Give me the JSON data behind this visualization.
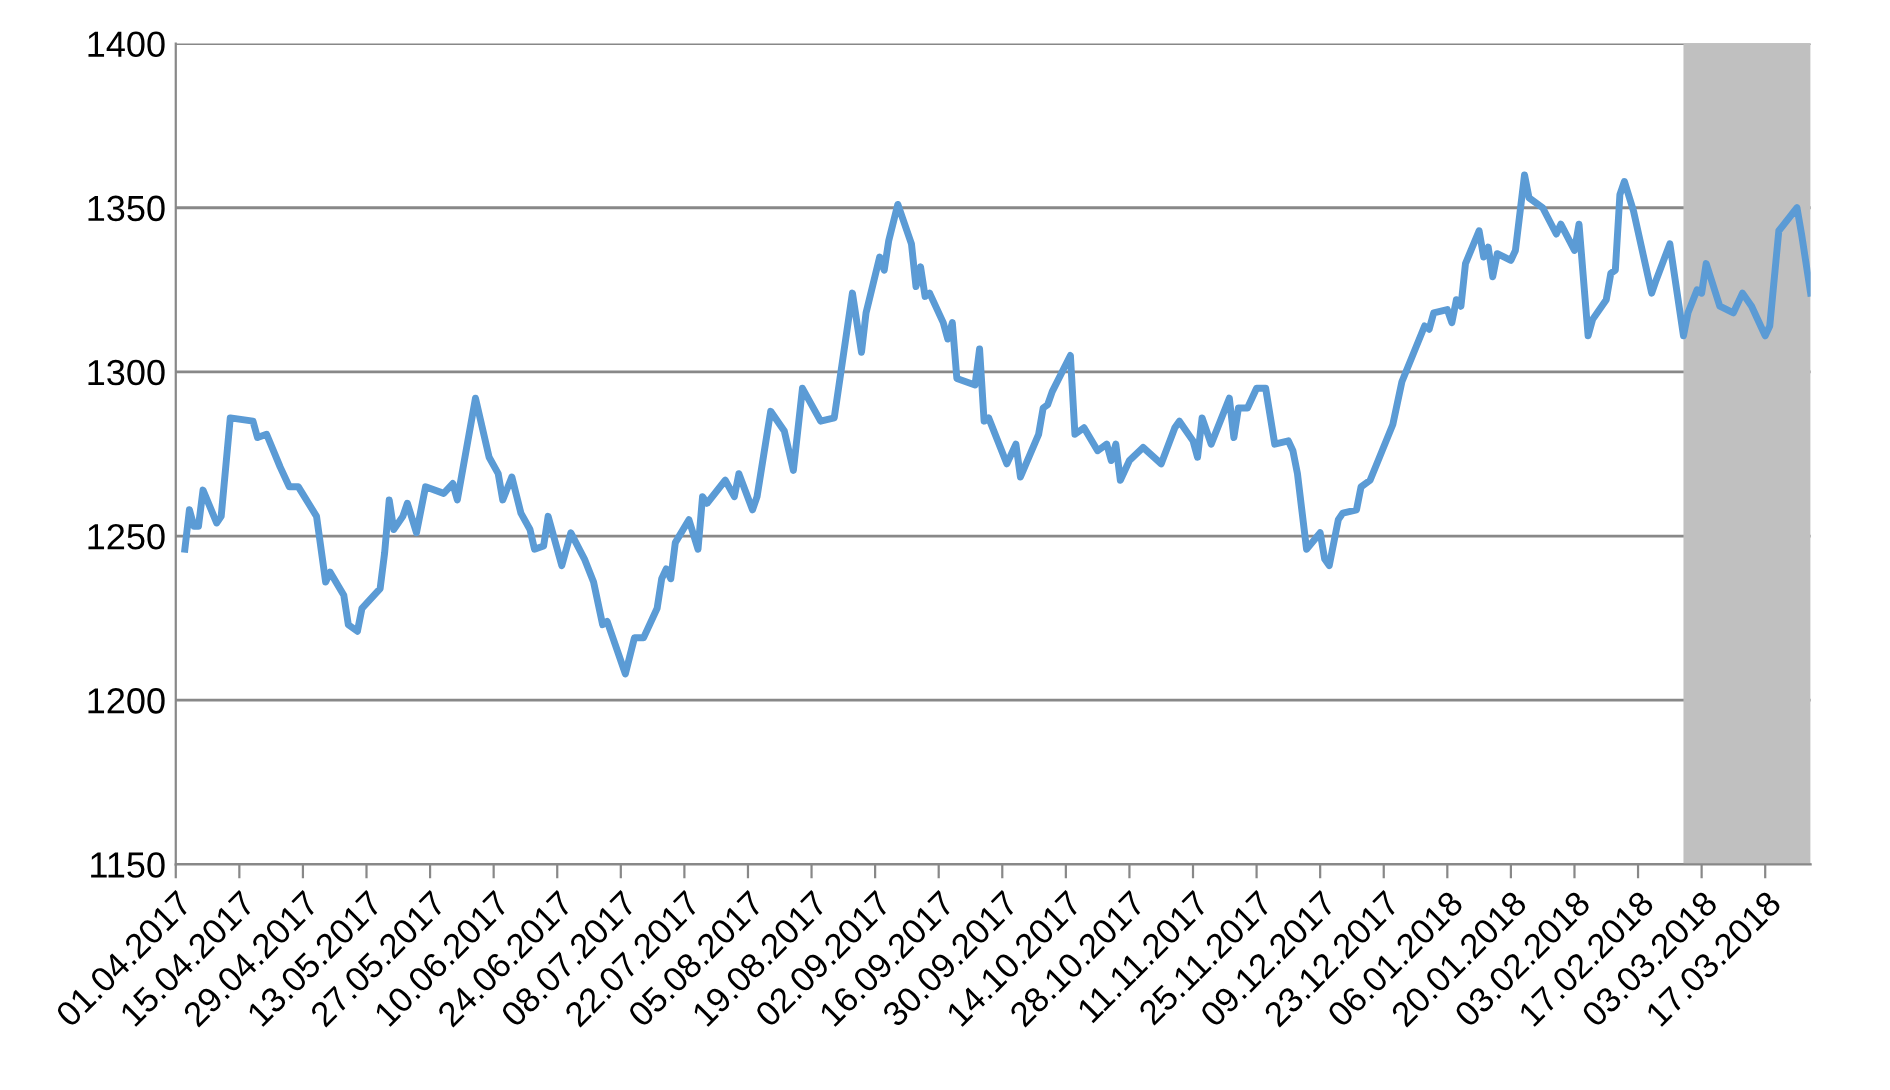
{
  "chart_data": {
    "type": "line",
    "xlim": [
      "2017-04-01",
      "2018-03-27"
    ],
    "ylim": [
      1150,
      1400
    ],
    "yticks": [
      1150,
      1200,
      1250,
      1300,
      1350,
      1400
    ],
    "xticks": [
      {
        "value": "2017-04-01",
        "label": "01.04.2017"
      },
      {
        "value": "2017-04-15",
        "label": "15.04.2017"
      },
      {
        "value": "2017-04-29",
        "label": "29.04.2017"
      },
      {
        "value": "2017-05-13",
        "label": "13.05.2017"
      },
      {
        "value": "2017-05-27",
        "label": "27.05.2017"
      },
      {
        "value": "2017-06-10",
        "label": "10.06.2017"
      },
      {
        "value": "2017-06-24",
        "label": "24.06.2017"
      },
      {
        "value": "2017-07-08",
        "label": "08.07.2017"
      },
      {
        "value": "2017-07-22",
        "label": "22.07.2017"
      },
      {
        "value": "2017-08-05",
        "label": "05.08.2017"
      },
      {
        "value": "2017-08-19",
        "label": "19.08.2017"
      },
      {
        "value": "2017-09-02",
        "label": "02.09.2017"
      },
      {
        "value": "2017-09-16",
        "label": "16.09.2017"
      },
      {
        "value": "2017-09-30",
        "label": "30.09.2017"
      },
      {
        "value": "2017-10-14",
        "label": "14.10.2017"
      },
      {
        "value": "2017-10-28",
        "label": "28.10.2017"
      },
      {
        "value": "2017-11-11",
        "label": "11.11.2017"
      },
      {
        "value": "2017-11-25",
        "label": "25.11.2017"
      },
      {
        "value": "2017-12-09",
        "label": "09.12.2017"
      },
      {
        "value": "2017-12-23",
        "label": "23.12.2017"
      },
      {
        "value": "2018-01-06",
        "label": "06.01.2018"
      },
      {
        "value": "2018-01-20",
        "label": "20.01.2018"
      },
      {
        "value": "2018-02-03",
        "label": "03.02.2018"
      },
      {
        "value": "2018-02-17",
        "label": "17.02.2018"
      },
      {
        "value": "2018-03-03",
        "label": "03.03.2018"
      },
      {
        "value": "2018-03-17",
        "label": "17.03.2018"
      }
    ],
    "grid": "y",
    "marker": "none",
    "line_style": "solid",
    "bands": [
      {
        "axis": "x",
        "from": "2018-02-27",
        "to": "2018-03-27",
        "color": "#c0c0c0"
      }
    ],
    "x": [
      "2017-04-03",
      "2017-04-04",
      "2017-04-05",
      "2017-04-06",
      "2017-04-07",
      "2017-04-10",
      "2017-04-11",
      "2017-04-13",
      "2017-04-18",
      "2017-04-19",
      "2017-04-21",
      "2017-04-24",
      "2017-04-26",
      "2017-04-28",
      "2017-05-02",
      "2017-05-04",
      "2017-05-05",
      "2017-05-08",
      "2017-05-09",
      "2017-05-11",
      "2017-05-12",
      "2017-05-16",
      "2017-05-17",
      "2017-05-18",
      "2017-05-19",
      "2017-05-21",
      "2017-05-22",
      "2017-05-24",
      "2017-05-26",
      "2017-05-30",
      "2017-06-01",
      "2017-06-02",
      "2017-06-06",
      "2017-06-09",
      "2017-06-11",
      "2017-06-12",
      "2017-06-14",
      "2017-06-16",
      "2017-06-18",
      "2017-06-19",
      "2017-06-21",
      "2017-06-22",
      "2017-06-25",
      "2017-06-27",
      "2017-06-30",
      "2017-07-02",
      "2017-07-04",
      "2017-07-05",
      "2017-07-07",
      "2017-07-09",
      "2017-07-11",
      "2017-07-13",
      "2017-07-16",
      "2017-07-17",
      "2017-07-18",
      "2017-07-19",
      "2017-07-20",
      "2017-07-23",
      "2017-07-25",
      "2017-07-26",
      "2017-07-27",
      "2017-07-31",
      "2017-08-02",
      "2017-08-03",
      "2017-08-06",
      "2017-08-07",
      "2017-08-10",
      "2017-08-13",
      "2017-08-15",
      "2017-08-17",
      "2017-08-21",
      "2017-08-24",
      "2017-08-28",
      "2017-08-30",
      "2017-08-31",
      "2017-09-03",
      "2017-09-04",
      "2017-09-05",
      "2017-09-07",
      "2017-09-10",
      "2017-09-11",
      "2017-09-12",
      "2017-09-13",
      "2017-09-14",
      "2017-09-17",
      "2017-09-18",
      "2017-09-19",
      "2017-09-20",
      "2017-09-24",
      "2017-09-25",
      "2017-09-26",
      "2017-09-27",
      "2017-10-01",
      "2017-10-03",
      "2017-10-04",
      "2017-10-08",
      "2017-10-09",
      "2017-10-10",
      "2017-10-11",
      "2017-10-15",
      "2017-10-16",
      "2017-10-18",
      "2017-10-21",
      "2017-10-23",
      "2017-10-24",
      "2017-10-25",
      "2017-10-26",
      "2017-10-28",
      "2017-10-31",
      "2017-11-04",
      "2017-11-07",
      "2017-11-08",
      "2017-11-11",
      "2017-11-12",
      "2017-11-13",
      "2017-11-15",
      "2017-11-19",
      "2017-11-20",
      "2017-11-21",
      "2017-11-23",
      "2017-11-25",
      "2017-11-27",
      "2017-11-29",
      "2017-12-02",
      "2017-12-03",
      "2017-12-04",
      "2017-12-06",
      "2017-12-09",
      "2017-12-10",
      "2017-12-11",
      "2017-12-13",
      "2017-12-14",
      "2017-12-17",
      "2017-12-18",
      "2017-12-20",
      "2017-12-25",
      "2017-12-27",
      "2018-01-01",
      "2018-01-02",
      "2018-01-03",
      "2018-01-06",
      "2018-01-07",
      "2018-01-08",
      "2018-01-09",
      "2018-01-10",
      "2018-01-13",
      "2018-01-14",
      "2018-01-15",
      "2018-01-16",
      "2018-01-17",
      "2018-01-20",
      "2018-01-21",
      "2018-01-23",
      "2018-01-24",
      "2018-01-27",
      "2018-01-30",
      "2018-01-31",
      "2018-02-03",
      "2018-02-04",
      "2018-02-06",
      "2018-02-07",
      "2018-02-10",
      "2018-02-11",
      "2018-02-12",
      "2018-02-13",
      "2018-02-14",
      "2018-02-16",
      "2018-02-20",
      "2018-02-21",
      "2018-02-24",
      "2018-02-27",
      "2018-02-28",
      "2018-03-02",
      "2018-03-03",
      "2018-03-04",
      "2018-03-07",
      "2018-03-10",
      "2018-03-12",
      "2018-03-14",
      "2018-03-17",
      "2018-03-18",
      "2018-03-20",
      "2018-03-24",
      "2018-03-25",
      "2018-03-27"
    ],
    "series": [
      {
        "color": "#5b9bd5",
        "values": [
          1246,
          1258,
          1253,
          1253,
          1264,
          1254,
          1256,
          1286,
          1285,
          1280,
          1281,
          1271,
          1265,
          1265,
          1256,
          1236,
          1239,
          1232,
          1223,
          1221,
          1228,
          1234,
          1245,
          1261,
          1252,
          1256,
          1260,
          1251,
          1265,
          1263,
          1266,
          1261,
          1292,
          1274,
          1269,
          1261,
          1268,
          1257,
          1252,
          1246,
          1247,
          1256,
          1241,
          1251,
          1243,
          1236,
          1223,
          1224,
          1216,
          1208,
          1219,
          1219,
          1228,
          1237,
          1240,
          1237,
          1248,
          1255,
          1246,
          1262,
          1260,
          1267,
          1262,
          1269,
          1258,
          1262,
          1288,
          1282,
          1270,
          1295,
          1285,
          1286,
          1324,
          1306,
          1318,
          1335,
          1331,
          1340,
          1351,
          1339,
          1326,
          1332,
          1323,
          1324,
          1315,
          1310,
          1315,
          1298,
          1296,
          1307,
          1285,
          1286,
          1272,
          1278,
          1268,
          1281,
          1289,
          1290,
          1294,
          1305,
          1281,
          1283,
          1276,
          1278,
          1273,
          1278,
          1267,
          1273,
          1277,
          1272,
          1283,
          1285,
          1279,
          1274,
          1286,
          1278,
          1292,
          1280,
          1289,
          1289,
          1295,
          1295,
          1278,
          1279,
          1276,
          1269,
          1246,
          1251,
          1243,
          1241,
          1255,
          1257,
          1258,
          1265,
          1267,
          1284,
          1297,
          1314,
          1313,
          1318,
          1319,
          1315,
          1322,
          1320,
          1333,
          1343,
          1335,
          1338,
          1329,
          1336,
          1334,
          1337,
          1360,
          1353,
          1350,
          1342,
          1345,
          1337,
          1345,
          1311,
          1316,
          1322,
          1330,
          1331,
          1354,
          1358,
          1349,
          1324,
          1328,
          1339,
          1311,
          1318,
          1325,
          1324,
          1333,
          1320,
          1318,
          1324,
          1320,
          1311,
          1314,
          1343,
          1350,
          1342,
          1324
        ]
      }
    ]
  }
}
